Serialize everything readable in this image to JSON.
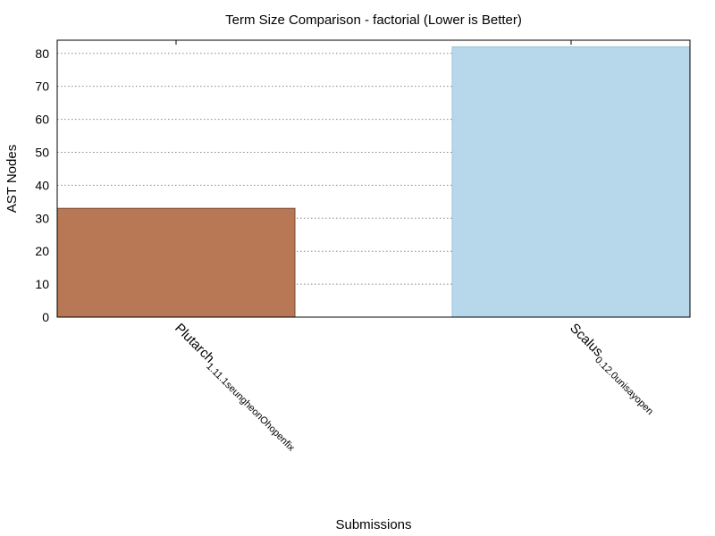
{
  "chart_data": {
    "type": "bar",
    "title": "Term Size Comparison - factorial (Lower is Better)",
    "xlabel": "Submissions",
    "ylabel": "AST Nodes",
    "ylim": [
      0,
      84
    ],
    "yticks": [
      0,
      10,
      20,
      30,
      40,
      50,
      60,
      70,
      80
    ],
    "grid": true,
    "categories": [
      "Plutarch_1.11.1_seungheonOh_open_fix",
      "Scalus_0.12.0_unisay_open"
    ],
    "category_labels": [
      {
        "parts": [
          [
            "Plutarch",
            0
          ],
          [
            "1.11.1",
            1
          ],
          [
            "seungheonOh",
            1
          ],
          [
            "open",
            1
          ],
          [
            "fix",
            1
          ]
        ]
      },
      {
        "parts": [
          [
            "Scalus",
            0
          ],
          [
            "0.12.0",
            1
          ],
          [
            "unisay",
            1
          ],
          [
            "open",
            1
          ]
        ]
      }
    ],
    "values": [
      33,
      82
    ],
    "colors": [
      "#b87855",
      "#b7d7ea"
    ]
  }
}
